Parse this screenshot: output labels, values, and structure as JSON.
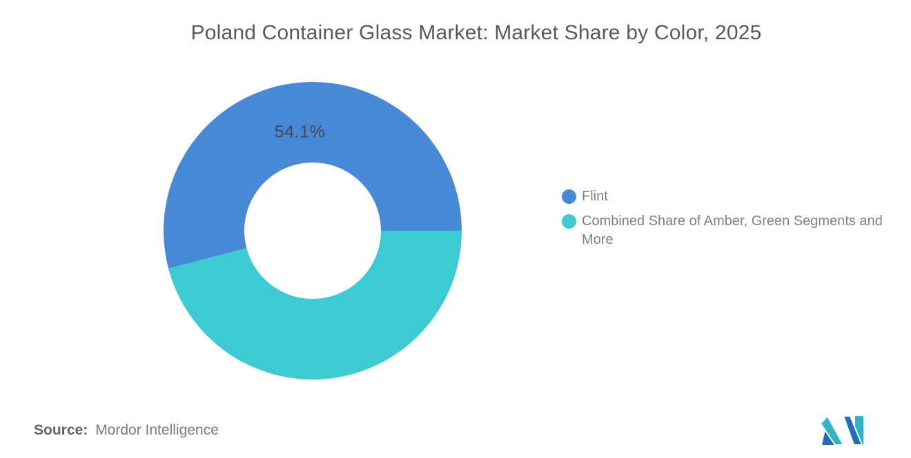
{
  "chart_data": {
    "type": "pie",
    "subtype": "donut",
    "title": "Poland Container Glass Market: Market Share by Color, 2025",
    "categories": [
      "Flint",
      "Combined Share of Amber, Green Segments and More"
    ],
    "values": [
      54.1,
      45.9
    ],
    "units": "percent",
    "series": [
      {
        "name": "Flint",
        "value": 54.1,
        "color": "#4889D7",
        "inside_label": "54.1%"
      },
      {
        "name": "Combined Share of Amber, Green Segments and More",
        "value": 45.9,
        "color": "#3CCBD2",
        "inside_label": ""
      }
    ],
    "start_angle_deg": 0,
    "direction": "counterclockwise",
    "inner_radius_ratio": 0.46,
    "legend_position": "right",
    "grid": "off"
  },
  "source": {
    "label": "Source:",
    "value": "Mordor Intelligence"
  },
  "logo": {
    "name": "mordor-intelligence-logo",
    "teal": "#2FB5C8",
    "blue": "#1C6FB8"
  }
}
